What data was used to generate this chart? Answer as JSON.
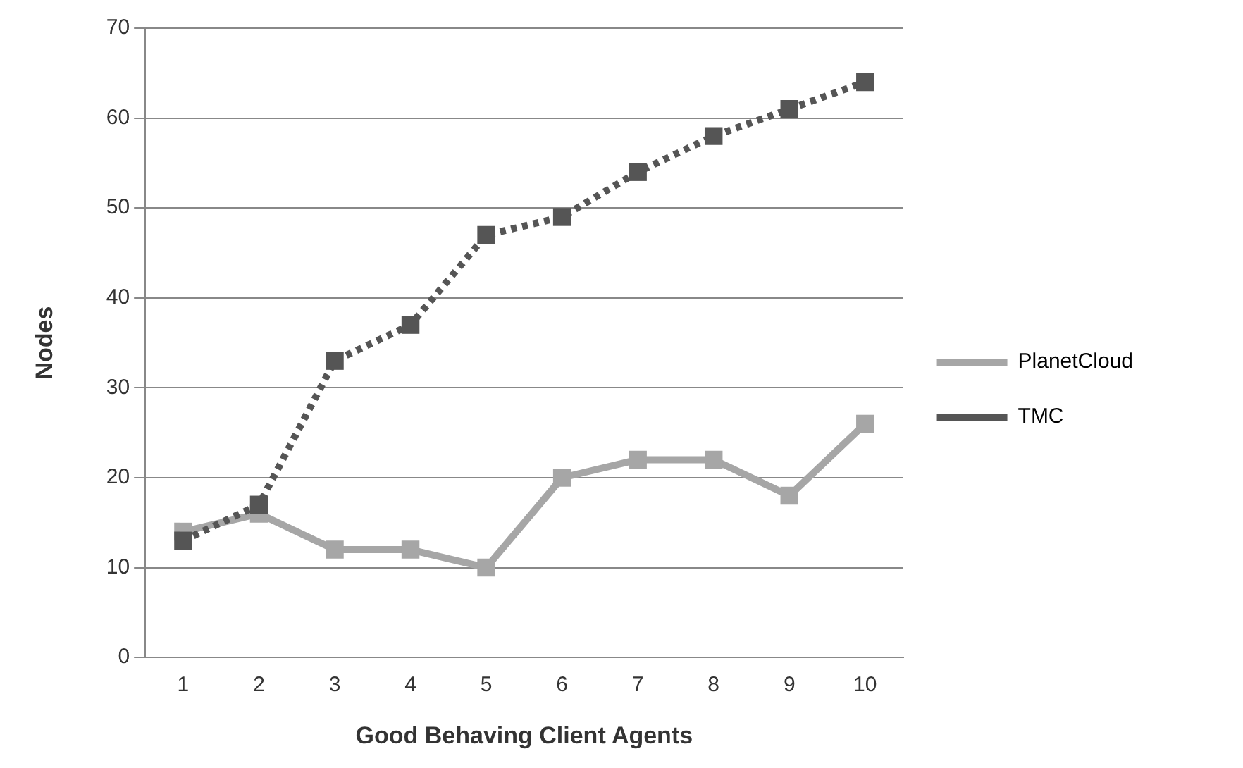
{
  "chart_data": {
    "type": "line",
    "xlabel": "Good Behaving Client Agents",
    "ylabel": "Nodes",
    "categories": [
      "1",
      "2",
      "3",
      "4",
      "5",
      "6",
      "7",
      "8",
      "9",
      "10"
    ],
    "series": [
      {
        "name": "PlanetCloud",
        "color": "#a6a6a6",
        "line_style": "solid",
        "values": [
          14,
          16,
          12,
          12,
          10,
          20,
          22,
          22,
          18,
          26
        ]
      },
      {
        "name": "TMC",
        "color": "#555555",
        "line_style": "dotted",
        "values": [
          13,
          17,
          33,
          37,
          47,
          49,
          54,
          58,
          61,
          64
        ]
      }
    ],
    "ylim": [
      0,
      70
    ],
    "yticks": [
      0,
      10,
      20,
      30,
      40,
      50,
      60,
      70
    ],
    "grid": "y",
    "legend": "right",
    "marker": "square"
  }
}
